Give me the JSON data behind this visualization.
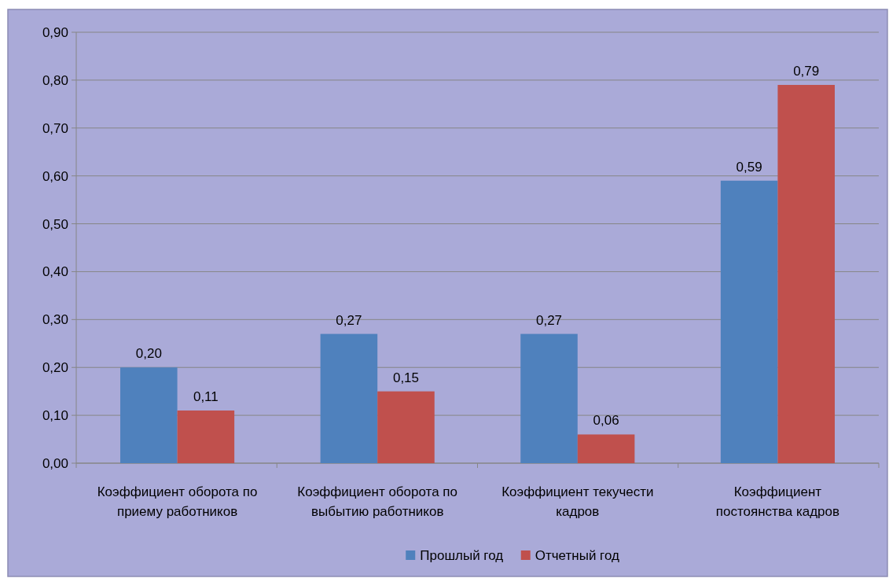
{
  "chart_data": {
    "type": "bar",
    "categories": [
      "Коэффициент оборота по приему работников",
      "Коэффициент оборота по выбытию работников",
      "Коэффициент текучести кадров",
      "Коэффициент постоянства кадров"
    ],
    "series": [
      {
        "name": "Прошлый год",
        "color": "#4f81bd",
        "values": [
          0.2,
          0.27,
          0.27,
          0.59
        ],
        "value_labels": [
          "0,20",
          "0,27",
          "0,27",
          "0,59"
        ]
      },
      {
        "name": "Отчетный год",
        "color": "#c0504d",
        "values": [
          0.11,
          0.15,
          0.06,
          0.79
        ],
        "value_labels": [
          "0,11",
          "0,15",
          "0,06",
          "0,79"
        ]
      }
    ],
    "ylim": [
      0,
      0.9
    ],
    "yticks": [
      {
        "value": 0,
        "label": "0,00"
      },
      {
        "value": 0.1,
        "label": "0,10"
      },
      {
        "value": 0.2,
        "label": "0,20"
      },
      {
        "value": 0.3,
        "label": "0,30"
      },
      {
        "value": 0.4,
        "label": "0,40"
      },
      {
        "value": 0.5,
        "label": "0,50"
      },
      {
        "value": 0.6,
        "label": "0,60"
      },
      {
        "value": 0.7,
        "label": "0,70"
      },
      {
        "value": 0.8,
        "label": "0,80"
      },
      {
        "value": 0.9,
        "label": "0,90"
      }
    ],
    "grid": "y",
    "legend": "bottom"
  }
}
